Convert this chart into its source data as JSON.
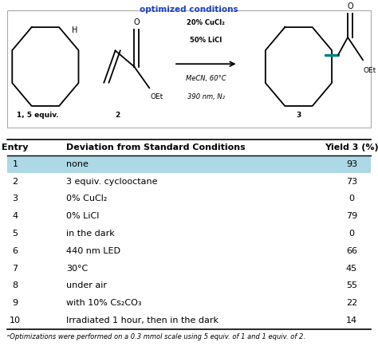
{
  "header": [
    "Entry",
    "Deviation from Standard Conditions",
    "Yield 3 (%)"
  ],
  "rows": [
    [
      "1",
      "none",
      "93"
    ],
    [
      "2",
      "3 equiv. cyclooctane",
      "73"
    ],
    [
      "3",
      "0% CuCl₂",
      "0"
    ],
    [
      "4",
      "0% LiCl",
      "79"
    ],
    [
      "5",
      "in the dark",
      "0"
    ],
    [
      "6",
      "440 nm LED",
      "66"
    ],
    [
      "7",
      "30°C",
      "45"
    ],
    [
      "8",
      "under air",
      "55"
    ],
    [
      "9",
      "with 10% Cs₂CO₃",
      "22"
    ],
    [
      "10",
      "Irradiated 1 hour, then in the dark",
      "14"
    ]
  ],
  "highlight_row": 0,
  "highlight_color": "#add8e6",
  "bg_color": "#ffffff",
  "footnote": "ᵃOptimizations were performed on a 0.3 mmol scale using 5 equiv. of 1 and 1 equiv. of 2.",
  "title_color": "#1a3fcc",
  "scheme_edge_color": "#aaaaaa",
  "teal_color": "#008080",
  "arrow_color": "#000000"
}
